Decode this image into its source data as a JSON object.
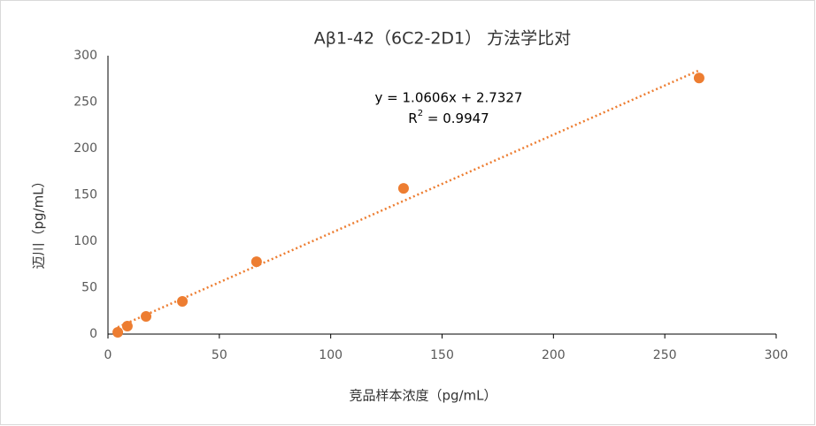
{
  "chart_data": {
    "type": "scatter",
    "title": "Aβ1-42（6C2-2D1） 方法学比对",
    "x_label": "竞品样本浓度（pg/mL）",
    "y_label": "迈川（pg/mL）",
    "series": [
      {
        "color": "#ED7D31",
        "x": [
          4.4,
          8.7,
          17.1,
          33.4,
          66.7,
          132.7,
          265.4
        ],
        "values": [
          1.9,
          8.6,
          19,
          35.2,
          78,
          157,
          276
        ]
      }
    ],
    "trendline": {
      "slope": 1.0606,
      "intercept": 2.7327,
      "color": "#ED7D31",
      "equation": "y = 1.0606x + 2.7327",
      "r_squared_text": [
        "R",
        "2",
        " = 0.9947"
      ]
    },
    "xlim": [
      0,
      300
    ],
    "xticks": [
      0,
      50,
      100,
      150,
      200,
      250,
      300
    ],
    "ylim": [
      0,
      300
    ],
    "yticks": [
      0,
      50,
      100,
      150,
      200,
      250,
      300
    ],
    "grid": false
  }
}
